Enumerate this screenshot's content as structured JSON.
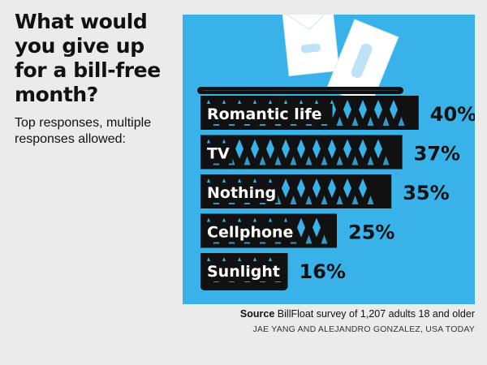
{
  "header": {
    "title": "What would you give up for a bill-free month?",
    "subtitle": "Top responses, multiple responses allowed:"
  },
  "footer": {
    "source_label": "Source",
    "source_text": "BillFloat survey of 1,207 adults 18 and older",
    "credit": "JAE YANG AND ALEJANDRO GONZALEZ, USA TODAY"
  },
  "colors": {
    "panel": "#38b2e8",
    "basket": "#111111",
    "background": "#ebebeb",
    "envelope": "#ffffff",
    "envelope_window": "#bfe3f6"
  },
  "chart_data": {
    "type": "bar",
    "orientation": "horizontal",
    "categories": [
      "Romantic life",
      "TV",
      "Nothing",
      "Cellphone",
      "Sunlight"
    ],
    "values": [
      40,
      37,
      35,
      25,
      16
    ],
    "value_labels": [
      "40%",
      "37%",
      "35%",
      "25%",
      "16%"
    ],
    "unit": "%",
    "title": "What would you give up for a bill-free month?",
    "subtitle": "Top responses, multiple responses allowed:"
  }
}
